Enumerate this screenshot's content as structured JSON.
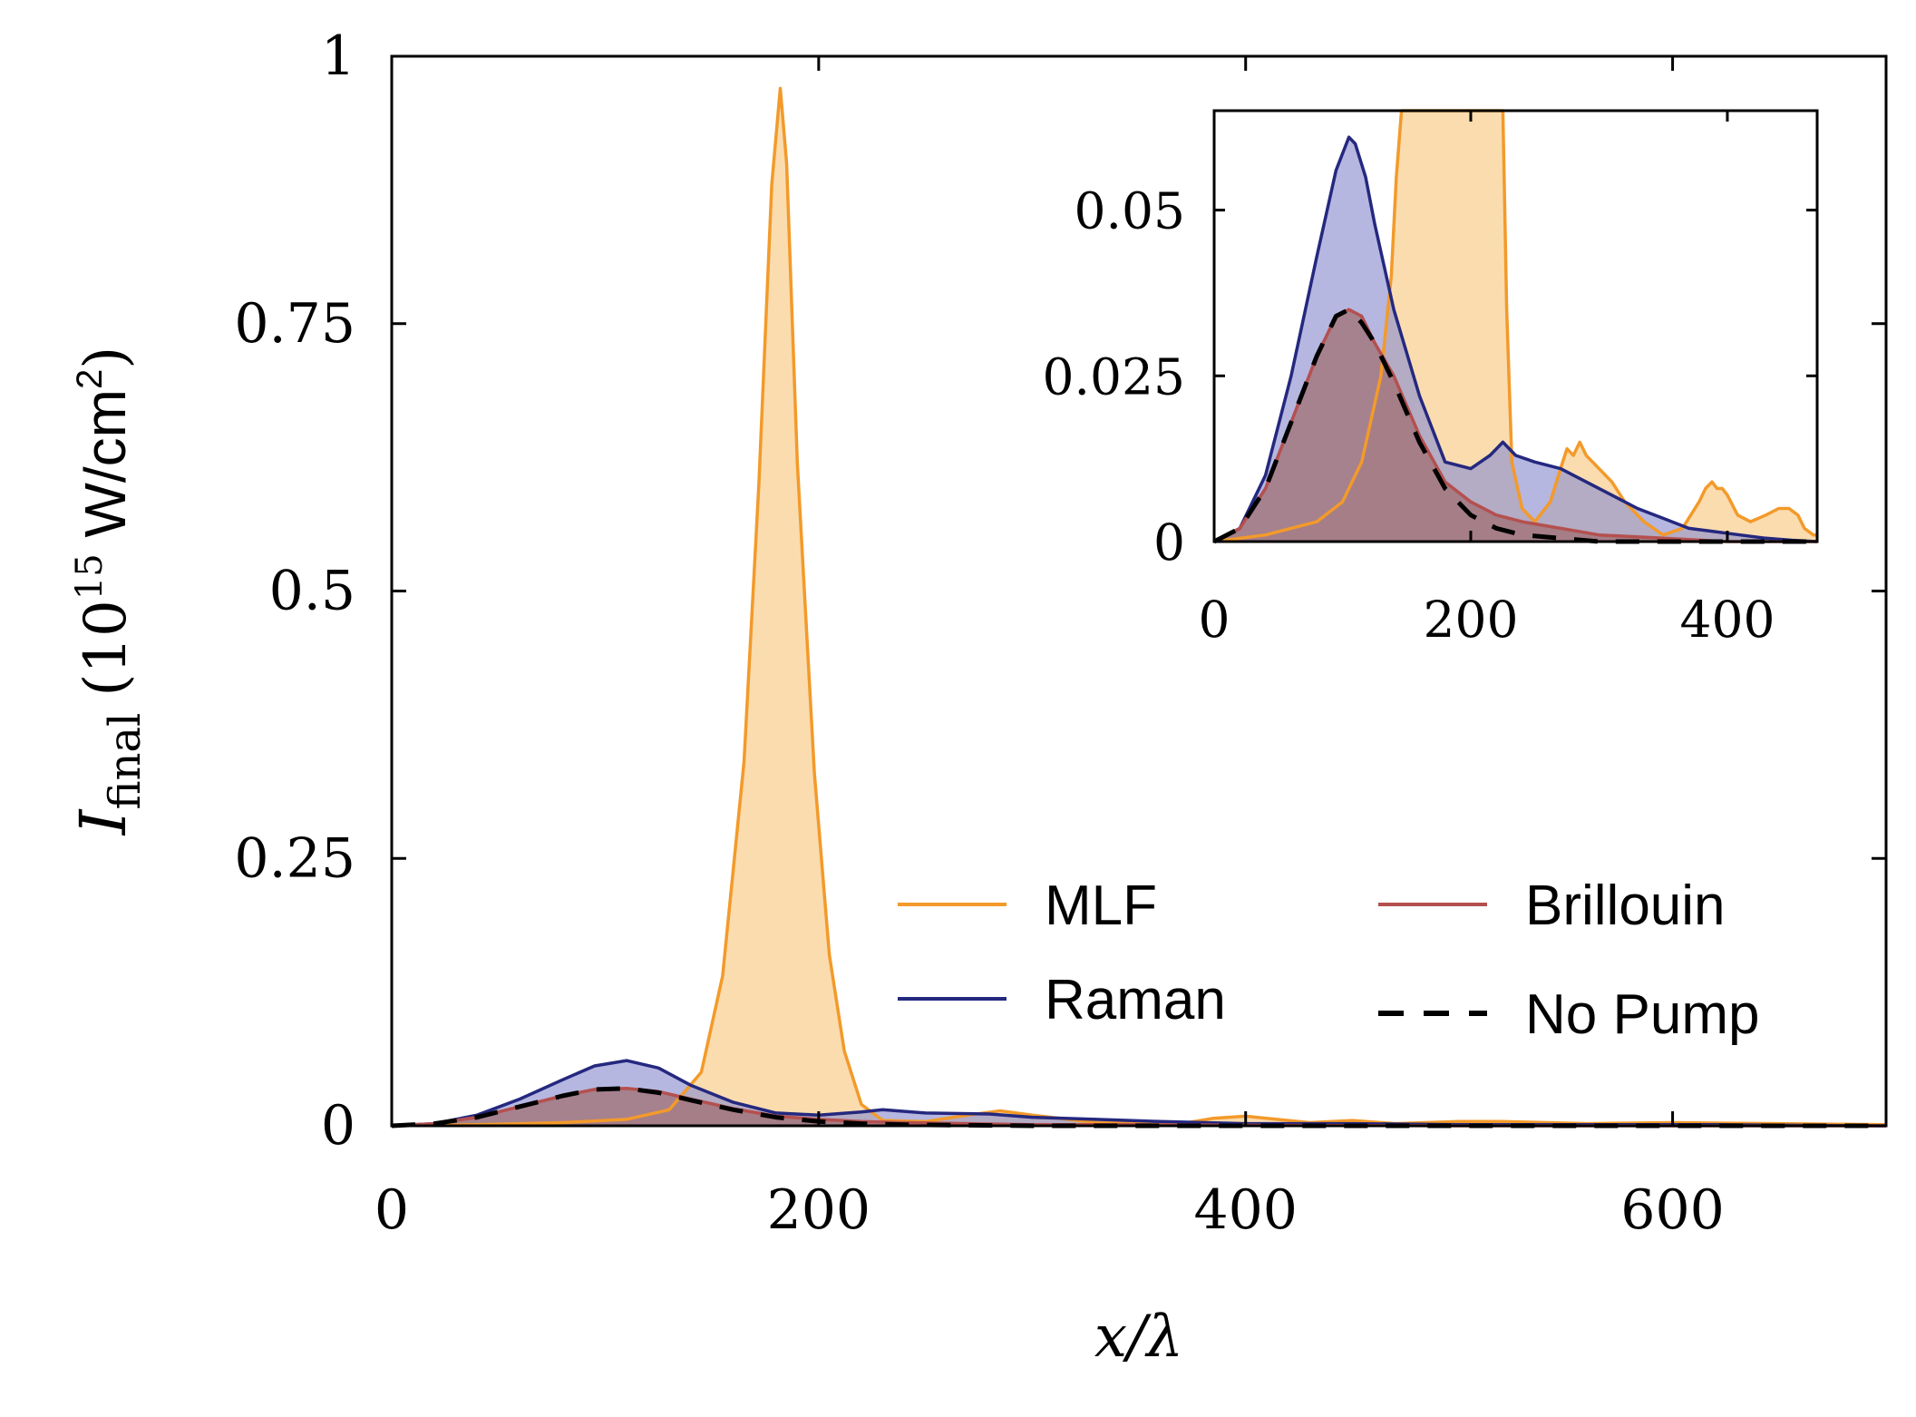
{
  "chart_data": [
    {
      "name": "main",
      "type": "area",
      "xlabel": "x/λ",
      "ylabel_base": "I",
      "ylabel_sub": "final",
      "ylabel_units_pre": "(10",
      "ylabel_units_exp": "15",
      "ylabel_units_post": " W/cm",
      "ylabel_units_exp2": "2",
      "ylabel_units_close": ")",
      "xlim": [
        0,
        700
      ],
      "ylim": [
        0,
        1
      ],
      "xticks": [
        0,
        200,
        400,
        600
      ],
      "xtick_labels": [
        "0",
        "200",
        "400",
        "600"
      ],
      "yticks": [
        0,
        0.25,
        0.5,
        0.75,
        1
      ],
      "ytick_labels": [
        "0",
        "0.25",
        "0.5",
        "0.75",
        "1"
      ],
      "legend_position": "lower-right",
      "series": [
        {
          "name": "MLF",
          "color": "#f39a2a",
          "fill": "#f8c984",
          "dashed": false,
          "x": [
            0,
            40,
            80,
            110,
            130,
            145,
            155,
            165,
            172,
            178,
            182,
            185,
            190,
            198,
            205,
            212,
            220,
            230,
            250,
            270,
            285,
            300,
            330,
            370,
            385,
            400,
            430,
            450,
            470,
            500,
            520,
            560,
            600,
            650,
            700
          ],
          "y": [
            0,
            0.001,
            0.003,
            0.006,
            0.015,
            0.05,
            0.14,
            0.34,
            0.6,
            0.88,
            0.97,
            0.9,
            0.62,
            0.33,
            0.16,
            0.07,
            0.02,
            0.005,
            0.004,
            0.01,
            0.014,
            0.01,
            0.003,
            0.002,
            0.007,
            0.009,
            0.003,
            0.005,
            0.002,
            0.004,
            0.004,
            0.002,
            0.003,
            0.002,
            0.001
          ]
        },
        {
          "name": "Raman",
          "color": "#24287f",
          "fill": "#8f91d0",
          "dashed": false,
          "x": [
            0,
            20,
            40,
            60,
            80,
            95,
            110,
            125,
            140,
            160,
            180,
            200,
            220,
            230,
            250,
            280,
            300,
            330,
            360,
            400,
            450,
            500,
            560,
            620,
            700
          ],
          "y": [
            0,
            0.002,
            0.01,
            0.025,
            0.043,
            0.056,
            0.061,
            0.054,
            0.038,
            0.022,
            0.012,
            0.01,
            0.013,
            0.015,
            0.012,
            0.011,
            0.008,
            0.006,
            0.004,
            0.002,
            0.002,
            0.001,
            0.001,
            0.001,
            0
          ]
        },
        {
          "name": "Brillouin",
          "color": "#b4504f",
          "fill": "#a06f73",
          "dashed": false,
          "x": [
            0,
            20,
            40,
            60,
            80,
            95,
            110,
            125,
            140,
            160,
            180,
            200,
            220,
            240,
            270,
            300,
            350,
            400,
            500,
            600,
            700
          ],
          "y": [
            0,
            0.002,
            0.008,
            0.018,
            0.028,
            0.034,
            0.035,
            0.032,
            0.025,
            0.016,
            0.009,
            0.006,
            0.004,
            0.003,
            0.002,
            0.001,
            0.001,
            0.0005,
            0,
            0,
            0
          ]
        },
        {
          "name": "No Pump",
          "color": "#000000",
          "fill": "none",
          "dashed": true,
          "x": [
            0,
            20,
            40,
            60,
            80,
            95,
            110,
            125,
            140,
            160,
            180,
            200,
            220,
            240,
            270,
            300,
            400,
            500,
            600,
            700
          ],
          "y": [
            0,
            0.002,
            0.008,
            0.018,
            0.028,
            0.034,
            0.035,
            0.031,
            0.024,
            0.015,
            0.008,
            0.004,
            0.002,
            0.001,
            0.0005,
            0,
            0,
            0,
            0,
            0
          ]
        }
      ]
    },
    {
      "name": "inset",
      "type": "area",
      "xlim": [
        0,
        470
      ],
      "ylim": [
        0,
        0.065
      ],
      "xticks": [
        0,
        200,
        400
      ],
      "xtick_labels": [
        "0",
        "200",
        "400"
      ],
      "yticks": [
        0,
        0.025,
        0.05
      ],
      "ytick_labels": [
        "0",
        "0.025",
        "0.05"
      ],
      "series": [
        {
          "name": "MLF",
          "color": "#f39a2a",
          "fill": "#f8c984",
          "dashed": false,
          "x": [
            0,
            40,
            80,
            100,
            115,
            130,
            138,
            142,
            146,
            150,
            155,
            215,
            220,
            225,
            228,
            232,
            240,
            250,
            262,
            270,
            275,
            280,
            285,
            290,
            300,
            310,
            320,
            335,
            350,
            365,
            378,
            383,
            388,
            392,
            396,
            400,
            408,
            418,
            430,
            440,
            448,
            455,
            460,
            467,
            470
          ],
          "y": [
            0,
            0.001,
            0.003,
            0.006,
            0.012,
            0.025,
            0.04,
            0.055,
            0.065,
            0.065,
            0.065,
            0.065,
            0.065,
            0.065,
            0.035,
            0.012,
            0.005,
            0.003,
            0.006,
            0.011,
            0.014,
            0.013,
            0.015,
            0.013,
            0.011,
            0.009,
            0.006,
            0.003,
            0.001,
            0.002,
            0.006,
            0.008,
            0.009,
            0.008,
            0.008,
            0.007,
            0.004,
            0.003,
            0.004,
            0.005,
            0.005,
            0.004,
            0.002,
            0.001,
            0.001
          ]
        },
        {
          "name": "Raman",
          "color": "#24287f",
          "fill": "#8f91d0",
          "dashed": false,
          "x": [
            0,
            20,
            40,
            60,
            80,
            95,
            105,
            110,
            118,
            125,
            140,
            160,
            180,
            200,
            215,
            225,
            235,
            250,
            270,
            290,
            310,
            330,
            350,
            370,
            390,
            410,
            430,
            450,
            470
          ],
          "y": [
            0,
            0.002,
            0.01,
            0.025,
            0.043,
            0.056,
            0.061,
            0.06,
            0.055,
            0.048,
            0.035,
            0.022,
            0.012,
            0.011,
            0.013,
            0.015,
            0.013,
            0.012,
            0.011,
            0.009,
            0.007,
            0.005,
            0.0035,
            0.002,
            0.0015,
            0.001,
            0.0005,
            0.0002,
            0
          ]
        },
        {
          "name": "Brillouin",
          "color": "#b4504f",
          "fill": "#a06f73",
          "dashed": false,
          "x": [
            0,
            20,
            40,
            60,
            80,
            95,
            105,
            115,
            125,
            140,
            160,
            180,
            200,
            220,
            240,
            270,
            300,
            350,
            400,
            470
          ],
          "y": [
            0,
            0.002,
            0.008,
            0.018,
            0.028,
            0.034,
            0.035,
            0.034,
            0.03,
            0.025,
            0.016,
            0.009,
            0.006,
            0.004,
            0.003,
            0.002,
            0.001,
            0.0005,
            0,
            0
          ]
        },
        {
          "name": "No Pump",
          "color": "#000000",
          "fill": "none",
          "dashed": true,
          "x": [
            0,
            20,
            40,
            60,
            80,
            95,
            105,
            115,
            125,
            140,
            160,
            180,
            200,
            220,
            240,
            270,
            300,
            400,
            470
          ],
          "y": [
            0,
            0.002,
            0.008,
            0.018,
            0.028,
            0.034,
            0.035,
            0.033,
            0.03,
            0.024,
            0.015,
            0.008,
            0.004,
            0.002,
            0.001,
            0.0005,
            0,
            0,
            0
          ]
        }
      ]
    }
  ]
}
